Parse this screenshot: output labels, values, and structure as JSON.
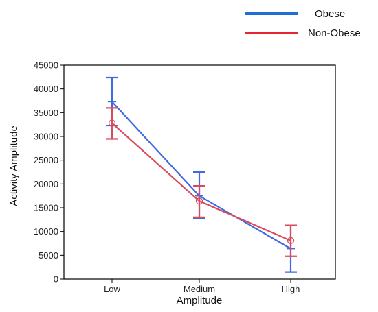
{
  "chart_data": {
    "type": "line",
    "categories": [
      "Low",
      "Medium",
      "High"
    ],
    "xlabel": "Amplitude",
    "ylabel": "Activity Amplitude",
    "ylim": [
      0,
      45000
    ],
    "yticks": [
      0,
      5000,
      10000,
      15000,
      20000,
      25000,
      30000,
      35000,
      40000,
      45000
    ],
    "ytick_labels": [
      "0",
      "5000",
      "10000",
      "15000",
      "20000",
      "25000",
      "30000",
      "35000",
      "40000",
      "45000"
    ],
    "grid": false,
    "legend_position": "top-right",
    "series": [
      {
        "name": "Obese",
        "color": "#4169e1",
        "legend_color": "#1f6fd6",
        "marker": "none",
        "values": [
          37300,
          17500,
          6400
        ],
        "error_low": [
          32300,
          12700,
          1500
        ],
        "error_high": [
          42400,
          22500,
          11300
        ]
      },
      {
        "name": "Non-Obese",
        "color": "#d94a5c",
        "legend_color": "#e8262f",
        "marker": "circle",
        "values": [
          32800,
          16400,
          8100
        ],
        "error_low": [
          29500,
          13000,
          4800
        ],
        "error_high": [
          36000,
          19600,
          11300
        ]
      }
    ]
  }
}
